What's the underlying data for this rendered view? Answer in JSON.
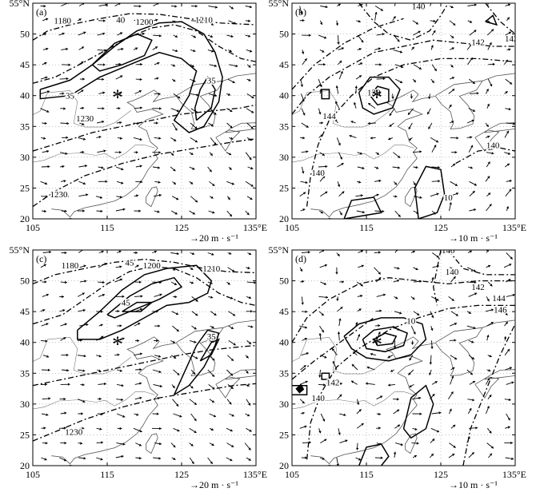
{
  "panels": [
    {
      "id": "a",
      "label": "(a)",
      "scale_label": "→20 m · s⁻¹",
      "contour_labels": [
        "1180",
        "1200",
        "1210",
        "1230",
        "1230",
        "35",
        "35",
        "40"
      ]
    },
    {
      "id": "b",
      "label": "(b)",
      "scale_label": "→10 m · s⁻¹",
      "contour_labels": [
        "140",
        "142",
        "144",
        "140",
        "142",
        "140",
        "138",
        "10"
      ]
    },
    {
      "id": "c",
      "label": "(c)",
      "scale_label": "→20 m · s⁻¹",
      "contour_labels": [
        "1180",
        "1200",
        "1210",
        "1230",
        "45",
        "45",
        "35"
      ]
    },
    {
      "id": "d",
      "label": "(d)",
      "scale_label": "→10 m · s⁻¹",
      "contour_labels": [
        "140",
        "142",
        "144",
        "146",
        "140",
        "142",
        "140",
        "10"
      ]
    }
  ],
  "axes": {
    "lon_ticks": [
      "105",
      "115",
      "125",
      "135°E"
    ],
    "lat_ticks": [
      "55°N",
      "50",
      "45",
      "40",
      "35",
      "30",
      "25",
      "20"
    ]
  },
  "marker": {
    "symbol": "*",
    "lon": 116.4,
    "lat": 39.9
  },
  "colors": {
    "line": "#000000",
    "background": "#ffffff",
    "coast": "#555555"
  }
}
